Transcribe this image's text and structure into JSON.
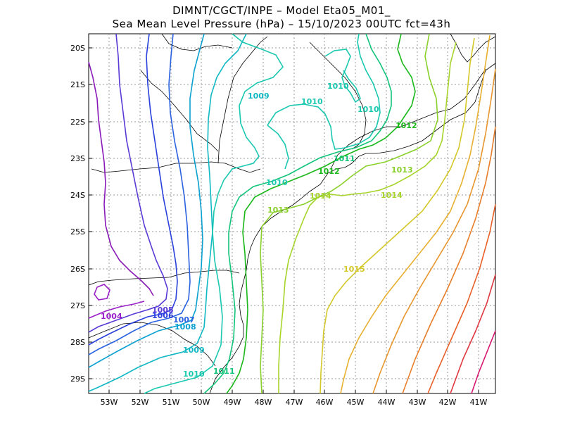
{
  "title": {
    "line1": "DIMNT/CGCT/INPE –  Model Eta05_M01_",
    "line2": "Sea Mean Level Pressure (hPa) – 15/10/2023 00UTC fct=43h"
  },
  "lat_ticks": [
    "20S",
    "21S",
    "22S",
    "23S",
    "24S",
    "25S",
    "26S",
    "27S",
    "28S",
    "29S"
  ],
  "lon_ticks": [
    "53W",
    "52W",
    "51W",
    "50W",
    "49W",
    "48W",
    "47W",
    "46W",
    "45W",
    "44W",
    "43W",
    "42W",
    "41W"
  ],
  "contour_labels": [
    {
      "text": "1004",
      "color": "#9a1fc8"
    },
    {
      "text": "1005",
      "color": "#5a3ad6"
    },
    {
      "text": "1006",
      "color": "#2a40dc"
    },
    {
      "text": "1007",
      "color": "#2a62e0"
    },
    {
      "text": "1008",
      "color": "#0aa0d0"
    },
    {
      "text": "1009",
      "color": "#10b8c4"
    },
    {
      "text": "1009",
      "color": "#10b8c4"
    },
    {
      "text": "1010",
      "color": "#1ac8b0"
    },
    {
      "text": "1010",
      "color": "#1ac8b0"
    },
    {
      "text": "1010",
      "color": "#1ac8b0"
    },
    {
      "text": "1010",
      "color": "#1ac8b0"
    },
    {
      "text": "1010",
      "color": "#1ac8b0"
    },
    {
      "text": "1011",
      "color": "#12c47a"
    },
    {
      "text": "1011",
      "color": "#12c47a"
    },
    {
      "text": "1012",
      "color": "#1ab81a"
    },
    {
      "text": "1012",
      "color": "#1ab81a"
    },
    {
      "text": "1013",
      "color": "#8ad02a"
    },
    {
      "text": "1013",
      "color": "#8ad02a"
    },
    {
      "text": "1014",
      "color": "#a6d42a"
    },
    {
      "text": "1014",
      "color": "#a6d42a"
    },
    {
      "text": "1015",
      "color": "#d4c82a"
    }
  ]
}
